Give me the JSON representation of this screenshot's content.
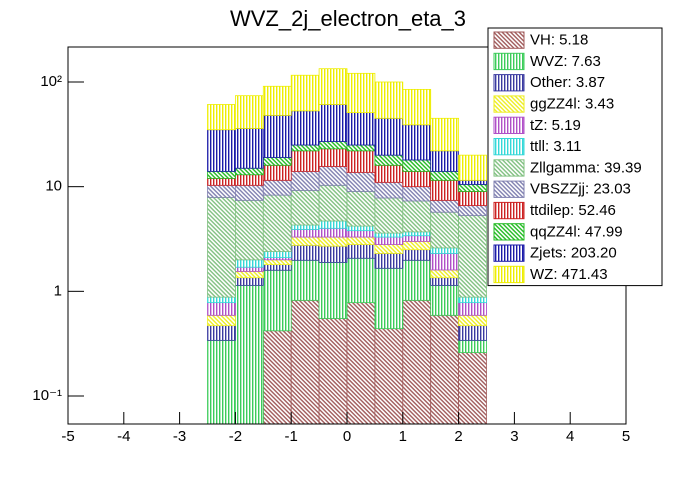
{
  "chart_data": {
    "type": "stacked-histogram",
    "title": "WVZ_2j_electron_eta_3",
    "bins": [
      -2.5,
      -2,
      -1.5,
      -1,
      -0.5,
      0,
      0.5,
      1,
      1.5,
      2,
      2.5
    ],
    "xlim": [
      -5,
      5
    ],
    "xticks": [
      -5,
      -4,
      -3,
      -2,
      -1,
      0,
      1,
      2,
      3,
      4,
      5
    ],
    "ylim": [
      0.054,
      216
    ],
    "log_y": true,
    "yticks": [
      {
        "value": 0.1,
        "label": "10⁻¹"
      },
      1,
      10,
      {
        "value": 100,
        "label": "10²"
      }
    ],
    "legend": "top-right",
    "series": [
      {
        "name": "VH: 5.18",
        "color": "#a05a5a",
        "values": [
          0,
          0,
          0.42,
          0.82,
          0.55,
          0.78,
          0.44,
          0.82,
          0.59,
          0.26
        ]
      },
      {
        "name": "WVZ: 7.63",
        "color": "#3ccc5a",
        "values": [
          0.34,
          1.14,
          1.17,
          1.16,
          1.34,
          1.29,
          1.22,
          1.16,
          0.55,
          0.08
        ]
      },
      {
        "name": "Other: 3.87",
        "color": "#3a3aa0",
        "values": [
          0.13,
          0.21,
          0.21,
          0.77,
          0.81,
          0.73,
          0.64,
          0.52,
          0.21,
          0.13
        ]
      },
      {
        "name": "ggZZ4l: 3.43",
        "color": "#eeee22",
        "values": [
          0.12,
          0.2,
          0.2,
          0.55,
          0.6,
          0.5,
          0.5,
          0.5,
          0.25,
          0.12
        ]
      },
      {
        "name": "tZ: 5.19",
        "color": "#b050c8",
        "values": [
          0.19,
          0.15,
          0.1,
          0.6,
          0.7,
          0.5,
          0.5,
          0.4,
          0.7,
          0.19
        ]
      },
      {
        "name": "ttll: 3.11",
        "color": "#33d8d8",
        "values": [
          0.1,
          0.3,
          0.3,
          0.4,
          0.7,
          0.4,
          0.3,
          0.3,
          0.3,
          0.1
        ]
      },
      {
        "name": "Zllgamma: 39.39",
        "color": "#80c080",
        "values": [
          7.02,
          5.4,
          5.9,
          4.9,
          5.6,
          4.8,
          4.2,
          3.6,
          3.1,
          4.42
        ]
      },
      {
        "name": "VBSZZjj: 23.03",
        "color": "#8080b0",
        "values": [
          2.4,
          2.9,
          3.2,
          4.8,
          5.3,
          4.7,
          3.2,
          2.7,
          1.7,
          1.3
        ]
      },
      {
        "name": "ttdilep: 52.46",
        "color": "#cc2222",
        "values": [
          1.7,
          2.7,
          4.5,
          8,
          7.4,
          8.3,
          5,
          4,
          4.1,
          2.4
        ]
      },
      {
        "name": "qqZZ4l: 47.99",
        "color": "#22bb22",
        "values": [
          2,
          2,
          3,
          3,
          4,
          3,
          4,
          4,
          2.5,
          1.5
        ]
      },
      {
        "name": "Zjets: 203.20",
        "color": "#1a1aa8",
        "values": [
          21,
          21,
          29,
          28,
          34,
          26,
          25,
          21,
          8,
          1
        ]
      },
      {
        "name": "WZ: 471.43",
        "color": "#eeee00",
        "values": [
          26,
          38,
          43,
          63,
          73,
          70,
          55,
          46,
          23,
          8.5
        ]
      }
    ]
  }
}
